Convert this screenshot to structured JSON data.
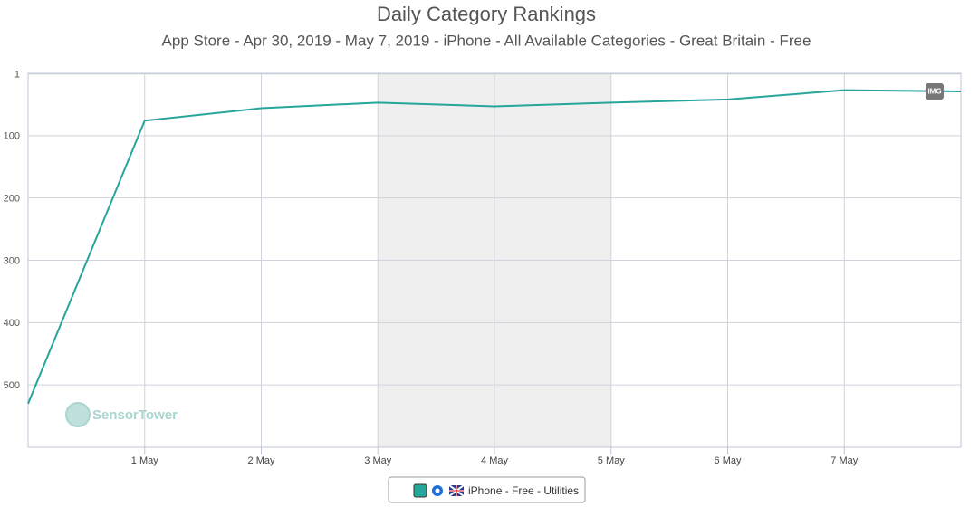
{
  "chart_data": {
    "type": "line",
    "title": "Daily Category Rankings",
    "subtitle": "App Store - Apr 30, 2019 - May 7, 2019 - iPhone - All Available Categories - Great Britain - Free",
    "categories": [
      null,
      "1 May",
      "2 May",
      "3 May",
      "4 May",
      "5 May",
      "6 May",
      "7 May",
      null
    ],
    "series": [
      {
        "name": "iPhone - Free - Utilities",
        "color": "#26a69a",
        "values": [
          530,
          76,
          56,
          47,
          53,
          47,
          42,
          27,
          29
        ]
      }
    ],
    "ylim": [
      0,
      600
    ],
    "yticks": [
      1,
      100,
      200,
      300,
      400,
      500
    ],
    "y_inverted": true,
    "grid": true,
    "legend": "bottom",
    "watermark": "SensorTower",
    "annotation": "IMG"
  }
}
